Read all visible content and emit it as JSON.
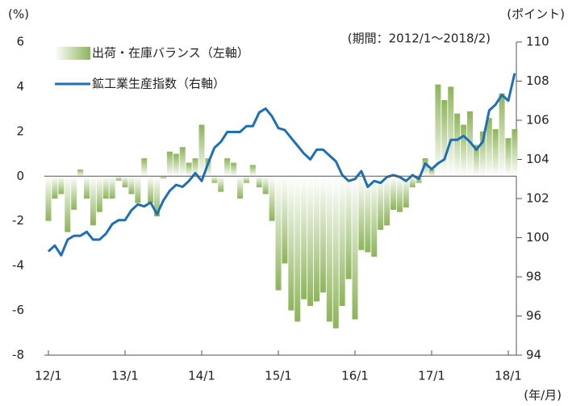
{
  "chart_data": {
    "type": "bar-line",
    "y_label": "(%)",
    "y2_label": "(ポイント)",
    "x_label": "(年/月)",
    "annotation": "(期間：2012/1～2018/2)",
    "categories": [
      "12/1",
      null,
      null,
      null,
      null,
      null,
      null,
      null,
      null,
      null,
      null,
      null,
      "13/1",
      null,
      null,
      null,
      null,
      null,
      null,
      null,
      null,
      null,
      null,
      null,
      "14/1",
      null,
      null,
      null,
      null,
      null,
      null,
      null,
      null,
      null,
      null,
      null,
      "15/1",
      null,
      null,
      null,
      null,
      null,
      null,
      null,
      null,
      null,
      null,
      null,
      "16/1",
      null,
      null,
      null,
      null,
      null,
      null,
      null,
      null,
      null,
      null,
      null,
      "17/1",
      null,
      null,
      null,
      null,
      null,
      null,
      null,
      null,
      null,
      null,
      null,
      "18/1",
      null
    ],
    "series": [
      {
        "name": "出荷・在庫バランス（左軸）",
        "color": "#8db45a",
        "kind": "bar",
        "values": [
          -2.0,
          -1.0,
          -0.8,
          -2.5,
          -1.5,
          0.3,
          -1.0,
          -2.2,
          -1.6,
          -1.0,
          -1.0,
          -0.2,
          -0.5,
          -0.8,
          -1.2,
          0.8,
          -1.2,
          -1.8,
          -0.1,
          1.1,
          1.0,
          1.3,
          0.6,
          0.8,
          2.3,
          0.8,
          -0.3,
          -0.7,
          0.8,
          0.6,
          -1.0,
          -0.3,
          0.5,
          -0.5,
          -0.8,
          -2.0,
          -5.1,
          -3.9,
          -6.0,
          -6.5,
          -5.5,
          -5.8,
          -5.6,
          -5.2,
          -6.5,
          -6.8,
          -5.8,
          -4.6,
          -6.4,
          -3.3,
          -3.4,
          -3.6,
          -2.4,
          -2.2,
          -1.5,
          -1.6,
          -1.4,
          -0.5,
          -0.3,
          0.8,
          0.3,
          4.1,
          3.4,
          4.0,
          2.8,
          2.3,
          2.9,
          1.4,
          2.0,
          2.6,
          2.1,
          3.7,
          1.7,
          2.1
        ]
      },
      {
        "name": "鉱工業生産指数（右軸）",
        "color": "#1f6fb5",
        "kind": "line",
        "axis": "y2",
        "values": [
          99.3,
          99.6,
          99.1,
          99.9,
          100.1,
          100.1,
          100.3,
          99.9,
          99.9,
          100.2,
          100.7,
          100.9,
          100.9,
          101.4,
          101.7,
          101.6,
          101.8,
          101.2,
          101.9,
          102.4,
          102.7,
          102.6,
          102.9,
          103.3,
          102.9,
          103.8,
          104.6,
          104.9,
          105.4,
          105.4,
          105.4,
          105.7,
          105.7,
          106.4,
          106.6,
          106.2,
          105.6,
          105.5,
          105.1,
          104.7,
          104.3,
          104.0,
          104.5,
          104.5,
          104.2,
          103.9,
          103.2,
          102.9,
          103.0,
          103.4,
          102.6,
          102.9,
          102.8,
          103.1,
          103.2,
          103.1,
          102.9,
          103.2,
          103.0,
          103.8,
          103.5,
          103.8,
          104.0,
          105.0,
          105.0,
          105.2,
          104.9,
          104.5,
          104.9,
          106.5,
          106.8,
          107.3,
          107.0,
          108.4
        ]
      }
    ],
    "ylim": [
      -8,
      6
    ],
    "yticks": [
      6,
      4,
      2,
      0,
      -2,
      -4,
      -6,
      -8
    ],
    "y2lim": [
      94,
      110
    ],
    "y2ticks": [
      110,
      108,
      106,
      104,
      102,
      100,
      98,
      96,
      94
    ]
  }
}
